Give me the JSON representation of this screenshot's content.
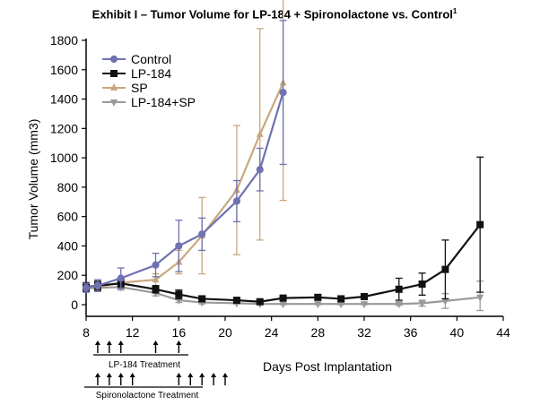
{
  "chart_data": {
    "type": "line",
    "title": "Exhibit I – Tumor Volume for LP-184 + Spironolactone vs. Control",
    "title_sup": "1",
    "xlabel": "Days Post Implantation",
    "ylabel": "Tumor Volume (mm3)",
    "xlim": [
      8,
      44
    ],
    "ylim": [
      -50,
      1800
    ],
    "xticks": [
      8,
      12,
      16,
      20,
      24,
      28,
      32,
      36,
      40,
      44
    ],
    "yticks": [
      0,
      200,
      400,
      600,
      800,
      1000,
      1200,
      1400,
      1600,
      1800
    ],
    "grid": false,
    "legend_position": "top-left",
    "series": [
      {
        "name": "Control",
        "color": "#6f72b0",
        "marker": "circle",
        "x": [
          8,
          9,
          11,
          14,
          16,
          18,
          21,
          23,
          25
        ],
        "y": [
          115,
          130,
          180,
          270,
          400,
          480,
          705,
          920,
          1445
        ],
        "err": [
          30,
          40,
          70,
          80,
          175,
          110,
          140,
          145,
          490
        ]
      },
      {
        "name": "LP-184",
        "color": "#111111",
        "marker": "square",
        "x": [
          8,
          9,
          11,
          14,
          16,
          18,
          21,
          23,
          25,
          28,
          30,
          32,
          35,
          37,
          39,
          42
        ],
        "y": [
          120,
          130,
          145,
          105,
          70,
          40,
          30,
          20,
          45,
          50,
          40,
          55,
          105,
          140,
          240,
          545
        ],
        "err": [
          30,
          30,
          30,
          25,
          30,
          20,
          10,
          10,
          10,
          15,
          20,
          15,
          75,
          75,
          200,
          460
        ]
      },
      {
        "name": "SP",
        "color": "#c9a77f",
        "marker": "triangle-up",
        "x": [
          8,
          9,
          11,
          14,
          16,
          18,
          21,
          23,
          25
        ],
        "y": [
          115,
          120,
          150,
          170,
          290,
          470,
          780,
          1160,
          1510
        ],
        "err": [
          20,
          30,
          30,
          40,
          80,
          260,
          440,
          720,
          800
        ]
      },
      {
        "name": "LP-184+SP",
        "color": "#999999",
        "marker": "triangle-down",
        "x": [
          8,
          9,
          11,
          14,
          16,
          18,
          21,
          23,
          25,
          28,
          30,
          32,
          35,
          37,
          39,
          42
        ],
        "y": [
          110,
          115,
          120,
          80,
          30,
          15,
          10,
          5,
          5,
          5,
          5,
          5,
          5,
          10,
          25,
          50
        ],
        "err": [
          20,
          20,
          20,
          20,
          15,
          10,
          5,
          5,
          5,
          5,
          5,
          5,
          10,
          20,
          50,
          110
        ]
      }
    ],
    "annotations": [
      {
        "label": "LP-184 Treatment",
        "arrow_days": [
          9,
          10,
          11,
          14,
          16
        ]
      },
      {
        "label": "Spironolactone Treatment",
        "arrow_days": [
          9,
          10,
          11,
          12,
          16,
          17,
          18,
          19,
          20
        ]
      }
    ]
  }
}
